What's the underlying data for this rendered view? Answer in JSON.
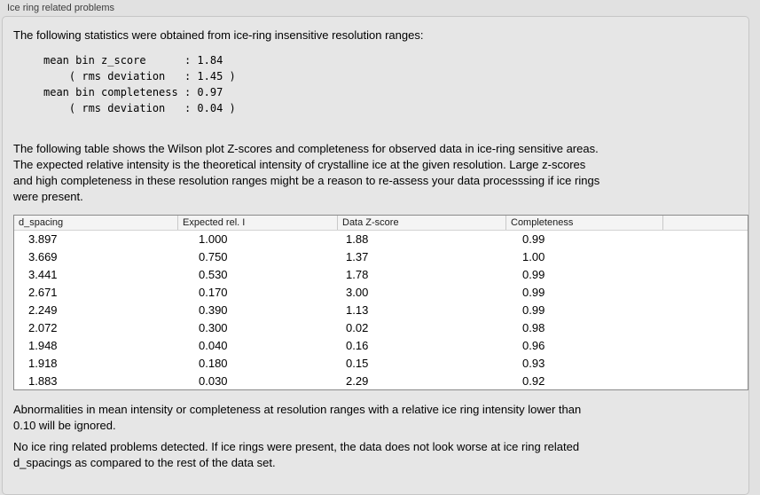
{
  "panel": {
    "title": "Ice ring related problems"
  },
  "intro_text": "The following statistics were obtained from ice-ring insensitive resolution ranges:",
  "stats_block": "mean bin z_score      : 1.84\n    ( rms deviation   : 1.45 )\nmean bin completeness : 0.97\n    ( rms deviation   : 0.04 )",
  "table_intro_lines": [
    "The following table shows the Wilson plot Z-scores and completeness for observed data in ice-ring sensitive areas.",
    "The expected relative intensity is the theoretical intensity of crystalline ice at the given resolution. Large z-scores",
    "and high completeness in these resolution ranges might be a reason to re-assess your data processsing if ice rings",
    "were present."
  ],
  "table": {
    "headers": [
      "d_spacing",
      "Expected rel. I",
      "Data Z-score",
      "Completeness",
      ""
    ],
    "rows": [
      [
        "3.897",
        "1.000",
        "1.88",
        "0.99"
      ],
      [
        "3.669",
        "0.750",
        "1.37",
        "1.00"
      ],
      [
        "3.441",
        "0.530",
        "1.78",
        "0.99"
      ],
      [
        "2.671",
        "0.170",
        "3.00",
        "0.99"
      ],
      [
        "2.249",
        "0.390",
        "1.13",
        "0.99"
      ],
      [
        "2.072",
        "0.300",
        "0.02",
        "0.98"
      ],
      [
        "1.948",
        "0.040",
        "0.16",
        "0.96"
      ],
      [
        "1.918",
        "0.180",
        "0.15",
        "0.93"
      ],
      [
        "1.883",
        "0.030",
        "2.29",
        "0.92"
      ]
    ]
  },
  "note_lines": [
    "Abnormalities in mean intensity or completeness at resolution ranges with a relative ice ring intensity lower than",
    "0.10 will be ignored."
  ],
  "conclusion_lines": [
    "No ice ring related problems detected. If ice rings were present, the data does not look worse at ice ring related",
    "d_spacings as compared to the rest of the data set."
  ],
  "colors": {
    "page_background": "#e1e1e1",
    "groupbox_background": "#e6e6e6",
    "groupbox_border": "#c6c6c6",
    "table_border": "#8a8a8a",
    "table_header_background": "#f4f4f4",
    "table_row_background": "#ffffff",
    "text": "#000000"
  }
}
